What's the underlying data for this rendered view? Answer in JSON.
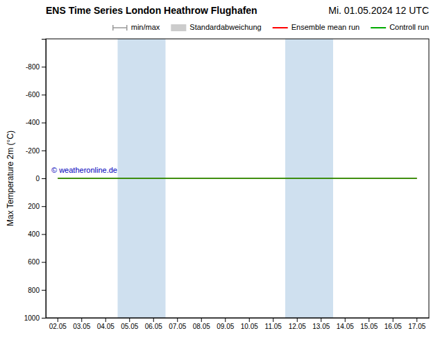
{
  "chart_data": {
    "type": "line",
    "title": "ENS Time Series London Heathrow Flughafen",
    "subtitle": "Mi. 01.05.2024 12 UTC",
    "ylabel": "Max Temperature 2m (°C)",
    "categories": [
      "02.05",
      "03.05",
      "04.05",
      "05.05",
      "06.05",
      "07.05",
      "08.05",
      "09.05",
      "10.05",
      "11.05",
      "12.05",
      "13.05",
      "14.05",
      "15.05",
      "16.05",
      "17.05"
    ],
    "series": [
      {
        "name": "min/max",
        "type": "range",
        "color": "#999999",
        "values": [
          null,
          null,
          null,
          null,
          null,
          null,
          null,
          null,
          null,
          null,
          null,
          null,
          null,
          null,
          null,
          null
        ]
      },
      {
        "name": "Standardabweichung",
        "type": "area",
        "color": "#cccccc",
        "values": [
          null,
          null,
          null,
          null,
          null,
          null,
          null,
          null,
          null,
          null,
          null,
          null,
          null,
          null,
          null,
          null
        ]
      },
      {
        "name": "Ensemble mean run",
        "type": "line",
        "color": "#ff0000",
        "values": [
          0,
          0,
          0,
          0,
          0,
          0,
          0,
          0,
          0,
          0,
          0,
          0,
          0,
          0,
          0,
          0
        ]
      },
      {
        "name": "Controll run",
        "type": "line",
        "color": "#00aa00",
        "values": [
          0,
          0,
          0,
          0,
          0,
          0,
          0,
          0,
          0,
          0,
          0,
          0,
          0,
          0,
          0,
          0
        ]
      }
    ],
    "ylim": [
      1000,
      -1000
    ],
    "yticks": [
      -800,
      -600,
      -400,
      -200,
      0,
      200,
      400,
      600,
      800,
      1000
    ],
    "shaded_ranges": [
      [
        "05.05",
        "06.05"
      ],
      [
        "12.05",
        "13.05"
      ]
    ],
    "shaded_color": "#cfe0ef",
    "annotations": [
      {
        "text": "© weatheronline.de",
        "color": "#0000bb"
      }
    ],
    "legend": "upper right",
    "grid": false
  }
}
